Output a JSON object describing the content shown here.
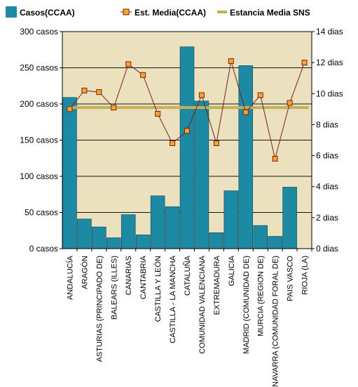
{
  "legend": {
    "bars_label": "Casos(CCAA)",
    "line_label": "Est. Media(CCAA)",
    "ref_label": "Estancia Media SNS"
  },
  "colors": {
    "plot_bg": "#ebe1bf",
    "bar": "#1d8aa3",
    "bar_edge": "#143f4d",
    "line": "#7a1f1f",
    "marker_fill": "#f5a623",
    "ref_line": "#c1b25a",
    "grid": "#000000"
  },
  "chart_data": {
    "type": "bar",
    "categories": [
      "ANDALUCÍA",
      "ARAGÓN",
      "ASTURIAS (PRINCIPADO DE)",
      "BALEARS (ILLES)",
      "CANARIAS",
      "CANTABRIA",
      "CASTILLA Y LEÓN",
      "CASTILLA - LA MANCHA",
      "CATALUÑA",
      "COMUNIDAD VALENCIANA",
      "EXTREMADURA",
      "GALICIA",
      "MADRID (COMUNIDAD DE)",
      "MURCIA (REGION DE)",
      "NAVARRA (COMUNIDAD FORAL DE)",
      "PAIS VASCO",
      "RIOJA (LA)"
    ],
    "series": [
      {
        "name": "Casos(CCAA)",
        "type": "bar",
        "axis": "left",
        "values": [
          209,
          41,
          30,
          15,
          47,
          19,
          73,
          58,
          279,
          204,
          22,
          80,
          253,
          32,
          17,
          85,
          0
        ]
      },
      {
        "name": "Est. Media(CCAA)",
        "type": "line",
        "axis": "right",
        "values": [
          9.0,
          10.2,
          10.1,
          9.1,
          11.9,
          11.2,
          8.7,
          6.8,
          7.6,
          9.9,
          6.8,
          12.1,
          8.8,
          9.9,
          5.8,
          9.4,
          12.0
        ]
      },
      {
        "name": "Estancia Media SNS",
        "type": "reference",
        "axis": "right",
        "value": 9.1
      }
    ],
    "y_left": {
      "ylim": [
        0,
        300
      ],
      "ticks": [
        0,
        50,
        100,
        150,
        200,
        250,
        300
      ],
      "tick_labels": [
        "0 casos",
        "50 casos",
        "100 casos",
        "150 casos",
        "200 casos",
        "250 casos",
        "300 casos"
      ]
    },
    "y_right": {
      "ylim": [
        0,
        14
      ],
      "ticks": [
        0,
        2,
        4,
        6,
        8,
        10,
        12,
        14
      ],
      "tick_labels": [
        "0 dias",
        "2 dias",
        "4 dias",
        "6 dias",
        "8 dias",
        "10 dias",
        "12 dias",
        "14 dias"
      ]
    },
    "grid": true,
    "legend_position": "top"
  }
}
